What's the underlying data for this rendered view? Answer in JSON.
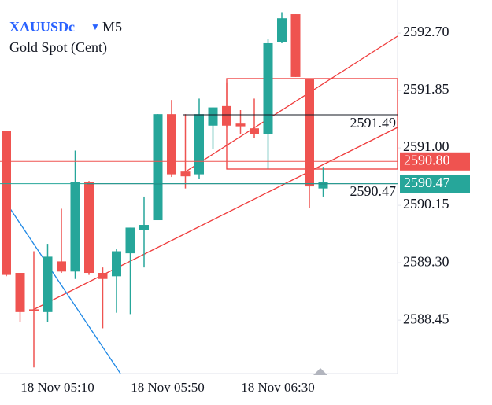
{
  "chart_data": {
    "type": "candlestick",
    "symbol": "XAUUSDc",
    "timeframe": "M5",
    "title": "Gold Spot (Cent)",
    "categories": [
      null,
      null,
      null,
      null,
      "18 Nov 05:10",
      null,
      null,
      null,
      null,
      null,
      null,
      null,
      "18 Nov 05:50",
      null,
      null,
      null,
      null,
      null,
      null,
      null,
      "18 Nov 06:30",
      null,
      null,
      null
    ],
    "open": [
      2591.25,
      2589.15,
      2588.61,
      2588.57,
      2589.32,
      2589.17,
      2590.49,
      2589.15,
      2589.1,
      2589.44,
      2589.79,
      2589.93,
      2591.5,
      2590.65,
      2590.61,
      2591.33,
      2591.62,
      2591.36,
      2591.29,
      2591.21,
      2592.57,
      2592.98,
      2592.03,
      2590.4
    ],
    "high": [
      2591.25,
      2589.15,
      2589.47,
      2589.58,
      2590.1,
      2590.96,
      2590.51,
      2589.23,
      2589.5,
      2589.82,
      2590.28,
      2591.5,
      2591.71,
      2591.5,
      2591.73,
      2591.6,
      2591.97,
      2591.56,
      2591.73,
      2592.61,
      2593.01,
      2592.98,
      2592.03,
      2590.72
    ],
    "low": [
      2589.1,
      2588.42,
      2587.75,
      2588.42,
      2589.15,
      2589.06,
      2589.12,
      2588.33,
      2588.56,
      2588.54,
      2589.23,
      2589.93,
      2590.57,
      2590.4,
      2590.54,
      2590.98,
      2591.3,
      2591.21,
      2591.15,
      2590.69,
      2592.55,
      2592.05,
      2590.11,
      2590.28
    ],
    "close": [
      2589.12,
      2588.57,
      2588.58,
      2589.39,
      2589.17,
      2590.49,
      2589.15,
      2589.06,
      2589.47,
      2589.82,
      2589.86,
      2591.5,
      2590.61,
      2590.58,
      2591.5,
      2591.6,
      2591.33,
      2591.32,
      2591.21,
      2592.55,
      2592.92,
      2592.05,
      2590.43,
      2590.49
    ],
    "up_color": "#26a69a",
    "down_color": "#ef5350",
    "ylim": [
      2587.66,
      2593.19
    ],
    "yticks": [
      {
        "value": 2592.7,
        "label": "2592.70"
      },
      2591.85,
      {
        "value": 2591.0,
        "label": "2591.00"
      },
      2590.15,
      {
        "value": 2589.3,
        "label": "2589.30"
      },
      2588.45
    ],
    "price_lines": [
      {
        "value": 2590.8,
        "label": "2590.80",
        "color": "#ef5350"
      },
      {
        "value": 2590.47,
        "color": "#26a69a"
      }
    ],
    "level_lines": [
      {
        "value": 2591.49
      },
      {
        "value": 2590.47
      }
    ]
  }
}
